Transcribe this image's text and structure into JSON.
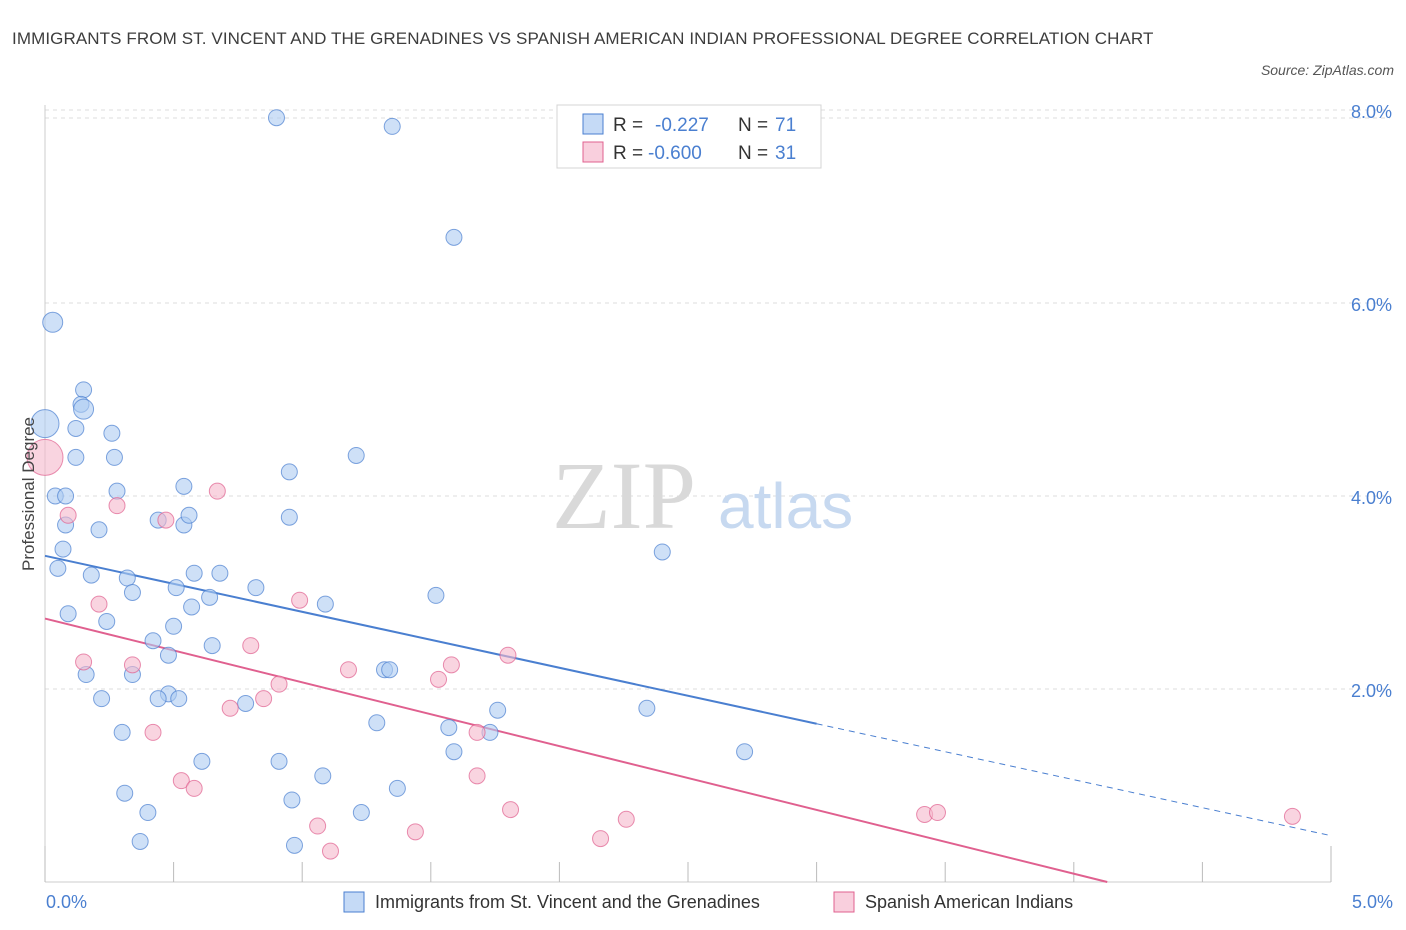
{
  "header": {
    "title": "IMMIGRANTS FROM ST. VINCENT AND THE GRENADINES VS SPANISH AMERICAN INDIAN PROFESSIONAL DEGREE CORRELATION CHART",
    "source": "Source: ZipAtlas.com"
  },
  "watermark": {
    "zip": "ZIP",
    "atlas": "atlas"
  },
  "colors": {
    "blue": "#4a7fd0",
    "blue_fill": "#aecbf2",
    "pink": "#e0608f",
    "pink_fill": "#f5b8cc",
    "grid": "#dddddd"
  },
  "legend": {
    "rows": [
      {
        "r_label": "R =",
        "r_value": "-0.227",
        "n_label": "N =",
        "n_value": "71"
      },
      {
        "r_label": "R =",
        "r_value": "-0.600",
        "n_label": "N =",
        "n_value": "31"
      }
    ]
  },
  "bottom_legend": [
    {
      "label": "Immigrants from St. Vincent and the Grenadines"
    },
    {
      "label": "Spanish American Indians"
    }
  ],
  "chart_data": {
    "type": "scatter",
    "xlabel": "",
    "ylabel": "Professional Degree",
    "xlim": [
      0,
      5
    ],
    "ylim": [
      0,
      8
    ],
    "x_tick_labels": [
      "0.0%",
      "5.0%"
    ],
    "y_tick_labels": [
      "2.0%",
      "4.0%",
      "6.0%",
      "8.0%"
    ],
    "y_ticks": [
      2,
      4,
      6,
      8
    ],
    "grid": true,
    "legend_position": "top-center",
    "series": [
      {
        "name": "Immigrants from St. Vincent and the Grenadines",
        "color": "#4a7fd0",
        "points": [
          [
            0.0,
            4.75,
            14
          ],
          [
            0.03,
            5.8,
            10
          ],
          [
            0.15,
            5.1,
            9
          ],
          [
            0.14,
            4.95,
            9
          ],
          [
            0.15,
            4.9,
            10
          ],
          [
            0.12,
            4.7,
            9
          ],
          [
            0.26,
            4.65,
            9
          ],
          [
            0.12,
            4.4,
            9
          ],
          [
            0.27,
            4.4,
            9
          ],
          [
            0.04,
            4.0,
            9
          ],
          [
            0.08,
            4.0,
            9
          ],
          [
            0.28,
            4.05,
            9
          ],
          [
            0.08,
            3.7,
            9
          ],
          [
            0.21,
            3.65,
            9
          ],
          [
            0.07,
            3.45,
            9
          ],
          [
            0.05,
            3.25,
            9
          ],
          [
            0.18,
            3.18,
            9
          ],
          [
            0.32,
            3.15,
            9
          ],
          [
            0.34,
            3.0,
            9
          ],
          [
            0.09,
            2.78,
            9
          ],
          [
            0.24,
            2.7,
            9
          ],
          [
            0.44,
            3.75,
            9
          ],
          [
            0.54,
            3.7,
            9
          ],
          [
            0.56,
            3.8,
            9
          ],
          [
            0.54,
            4.1,
            9
          ],
          [
            0.58,
            3.2,
            9
          ],
          [
            0.68,
            3.2,
            9
          ],
          [
            0.51,
            3.05,
            9
          ],
          [
            0.64,
            2.95,
            9
          ],
          [
            0.57,
            2.85,
            9
          ],
          [
            0.5,
            2.65,
            9
          ],
          [
            0.42,
            2.5,
            9
          ],
          [
            0.65,
            2.45,
            9
          ],
          [
            0.48,
            2.35,
            9
          ],
          [
            0.34,
            2.15,
            9
          ],
          [
            0.16,
            2.15,
            9
          ],
          [
            0.22,
            1.9,
            9
          ],
          [
            0.48,
            1.95,
            9
          ],
          [
            0.44,
            1.9,
            9
          ],
          [
            0.52,
            1.9,
            9
          ],
          [
            0.78,
            1.85,
            9
          ],
          [
            0.3,
            1.55,
            9
          ],
          [
            0.61,
            1.25,
            9
          ],
          [
            0.91,
            1.25,
            9
          ],
          [
            0.31,
            0.92,
            9
          ],
          [
            0.4,
            0.72,
            9
          ],
          [
            0.37,
            0.42,
            9
          ],
          [
            0.96,
            0.85,
            9
          ],
          [
            1.08,
            1.1,
            9
          ],
          [
            0.97,
            0.38,
            9
          ],
          [
            1.23,
            0.72,
            9
          ],
          [
            0.82,
            3.05,
            9
          ],
          [
            0.95,
            4.25,
            9
          ],
          [
            0.95,
            3.78,
            9
          ],
          [
            1.09,
            2.88,
            9
          ],
          [
            1.21,
            4.42,
            9
          ],
          [
            1.29,
            1.65,
            9
          ],
          [
            1.32,
            2.2,
            9
          ],
          [
            1.34,
            2.2,
            9
          ],
          [
            1.37,
            0.97,
            9
          ],
          [
            1.52,
            2.97,
            9
          ],
          [
            1.57,
            1.6,
            9
          ],
          [
            1.59,
            1.35,
            9
          ],
          [
            1.73,
            1.55,
            9
          ],
          [
            1.76,
            1.78,
            9
          ],
          [
            2.4,
            3.42,
            9
          ],
          [
            2.34,
            1.8,
            9
          ],
          [
            2.72,
            1.35,
            9
          ],
          [
            0.9,
            7.92,
            9
          ],
          [
            1.35,
            7.83,
            9
          ],
          [
            1.59,
            6.68,
            9
          ]
        ]
      },
      {
        "name": "Spanish American Indians",
        "color": "#e0608f",
        "points": [
          [
            0.0,
            4.4,
            18
          ],
          [
            0.09,
            3.8,
            9
          ],
          [
            0.28,
            3.9,
            9
          ],
          [
            0.47,
            3.75,
            9
          ],
          [
            0.67,
            4.05,
            9
          ],
          [
            0.21,
            2.88,
            9
          ],
          [
            0.15,
            2.28,
            9
          ],
          [
            0.34,
            2.25,
            9
          ],
          [
            0.8,
            2.45,
            9
          ],
          [
            0.72,
            1.8,
            9
          ],
          [
            0.85,
            1.9,
            9
          ],
          [
            0.91,
            2.05,
            9
          ],
          [
            0.42,
            1.55,
            9
          ],
          [
            0.53,
            1.05,
            9
          ],
          [
            0.58,
            0.97,
            9
          ],
          [
            0.99,
            2.92,
            9
          ],
          [
            1.06,
            0.58,
            9
          ],
          [
            1.11,
            0.32,
            9
          ],
          [
            1.18,
            2.2,
            9
          ],
          [
            1.44,
            0.52,
            9
          ],
          [
            1.53,
            2.1,
            9
          ],
          [
            1.58,
            2.25,
            9
          ],
          [
            1.68,
            1.55,
            9
          ],
          [
            1.68,
            1.1,
            9
          ],
          [
            1.8,
            2.35,
            9
          ],
          [
            1.81,
            0.75,
            9
          ],
          [
            2.16,
            0.45,
            9
          ],
          [
            2.26,
            0.65,
            9
          ],
          [
            3.42,
            0.7,
            9
          ],
          [
            3.47,
            0.72,
            9
          ],
          [
            4.85,
            0.68,
            9
          ]
        ]
      }
    ],
    "trend_lines": [
      {
        "series": "Immigrants from St. Vincent and the Grenadines",
        "x0": 0.0,
        "y0": 3.38,
        "x_solid_end": 3.0,
        "x1": 5.0,
        "y1": 0.48
      },
      {
        "series": "Spanish American Indians",
        "x0": 0.0,
        "y0": 2.73,
        "x1": 4.13,
        "y1": 0.0
      }
    ]
  }
}
